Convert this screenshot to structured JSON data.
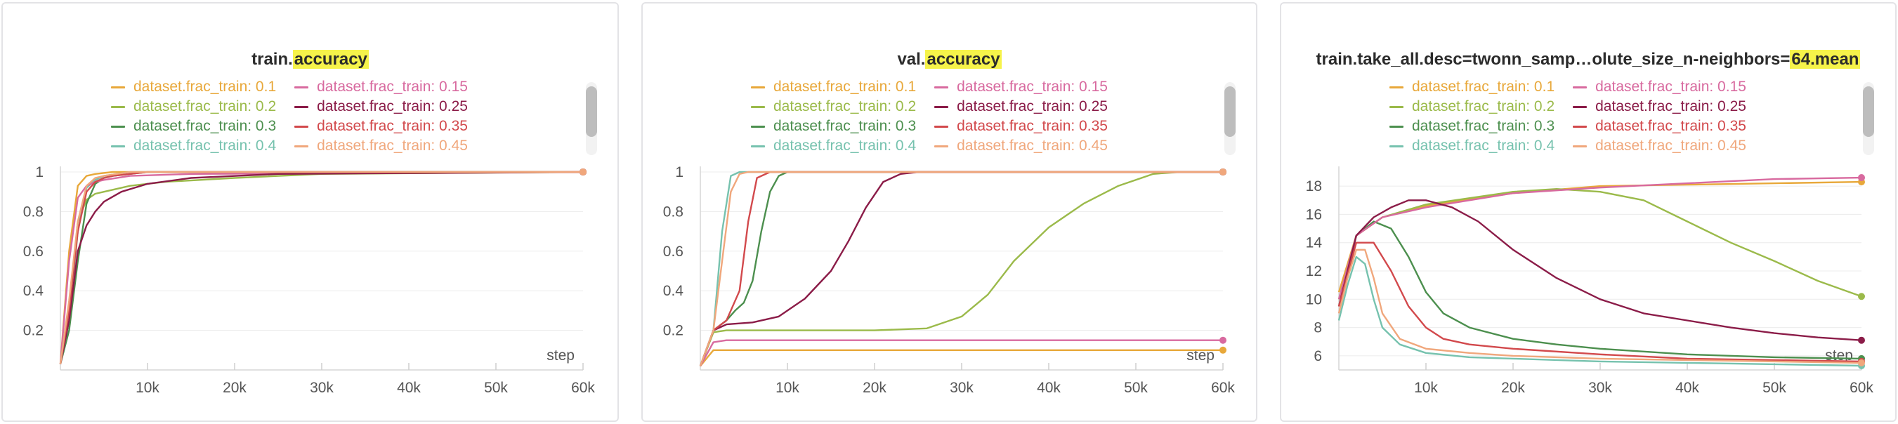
{
  "chart_data": [
    {
      "type": "line",
      "title_prefix": "train.",
      "title_highlight": "accuracy",
      "title_suffix": "",
      "xlabel": "step",
      "xlim": [
        0,
        60000
      ],
      "ylim": [
        0,
        1
      ],
      "xticks": [
        {
          "v": 10000,
          "label": "10k"
        },
        {
          "v": 20000,
          "label": "20k"
        },
        {
          "v": 30000,
          "label": "30k"
        },
        {
          "v": 40000,
          "label": "40k"
        },
        {
          "v": 50000,
          "label": "50k"
        },
        {
          "v": 60000,
          "label": "60k"
        }
      ],
      "yticks": [
        {
          "v": 0.2,
          "label": "0.2"
        },
        {
          "v": 0.4,
          "label": "0.4"
        },
        {
          "v": 0.6,
          "label": "0.6"
        },
        {
          "v": 0.8,
          "label": "0.8"
        },
        {
          "v": 1,
          "label": "1"
        }
      ],
      "series": [
        {
          "name": "dataset.frac_train: 0.1",
          "color": "#e8a83a",
          "x": [
            0,
            1000,
            2000,
            3000,
            4000,
            6000,
            10000,
            60000
          ],
          "y": [
            0.03,
            0.6,
            0.93,
            0.98,
            0.99,
            1,
            1,
            1
          ]
        },
        {
          "name": "dataset.frac_train: 0.2",
          "color": "#9bba4a",
          "x": [
            0,
            1000,
            2000,
            3000,
            4000,
            5000,
            8000,
            12000,
            20000,
            30000,
            60000
          ],
          "y": [
            0.03,
            0.3,
            0.75,
            0.86,
            0.89,
            0.9,
            0.93,
            0.95,
            0.97,
            0.99,
            1
          ]
        },
        {
          "name": "dataset.frac_train: 0.3",
          "color": "#4c8f4e",
          "x": [
            0,
            1000,
            2000,
            3000,
            4000,
            5000,
            6000,
            10000,
            60000
          ],
          "y": [
            0.03,
            0.2,
            0.55,
            0.84,
            0.94,
            0.97,
            0.98,
            1,
            1
          ]
        },
        {
          "name": "dataset.frac_train: 0.4",
          "color": "#76c2ae",
          "x": [
            0,
            1000,
            2000,
            3000,
            4000,
            5000,
            8000,
            60000
          ],
          "y": [
            0.03,
            0.25,
            0.7,
            0.92,
            0.96,
            0.98,
            1,
            1
          ]
        },
        {
          "name": "dataset.frac_train: 0.15",
          "color": "#d86a9f",
          "x": [
            0,
            1000,
            2000,
            3000,
            4000,
            5000,
            8000,
            15000,
            60000
          ],
          "y": [
            0.03,
            0.55,
            0.87,
            0.93,
            0.95,
            0.96,
            0.98,
            0.99,
            1
          ]
        },
        {
          "name": "dataset.frac_train: 0.25",
          "color": "#8b1c48",
          "x": [
            0,
            1000,
            2000,
            3000,
            4000,
            5000,
            7000,
            10000,
            15000,
            25000,
            60000
          ],
          "y": [
            0.03,
            0.25,
            0.6,
            0.73,
            0.8,
            0.85,
            0.9,
            0.94,
            0.97,
            0.99,
            1
          ]
        },
        {
          "name": "dataset.frac_train: 0.35",
          "color": "#d2494c",
          "x": [
            0,
            1000,
            2000,
            3000,
            4000,
            5000,
            6000,
            10000,
            60000
          ],
          "y": [
            0.03,
            0.3,
            0.7,
            0.9,
            0.95,
            0.97,
            0.98,
            1,
            1
          ]
        },
        {
          "name": "dataset.frac_train: 0.45",
          "color": "#f0a77c",
          "x": [
            0,
            1000,
            2000,
            3000,
            4000,
            5000,
            8000,
            60000
          ],
          "y": [
            0.03,
            0.35,
            0.75,
            0.93,
            0.97,
            0.98,
            1,
            1
          ]
        }
      ]
    },
    {
      "type": "line",
      "title_prefix": "val.",
      "title_highlight": "accuracy",
      "title_suffix": "",
      "xlabel": "step",
      "xlim": [
        0,
        60000
      ],
      "ylim": [
        0,
        1
      ],
      "xticks": [
        {
          "v": 10000,
          "label": "10k"
        },
        {
          "v": 20000,
          "label": "20k"
        },
        {
          "v": 30000,
          "label": "30k"
        },
        {
          "v": 40000,
          "label": "40k"
        },
        {
          "v": 50000,
          "label": "50k"
        },
        {
          "v": 60000,
          "label": "60k"
        }
      ],
      "yticks": [
        {
          "v": 0.2,
          "label": "0.2"
        },
        {
          "v": 0.4,
          "label": "0.4"
        },
        {
          "v": 0.6,
          "label": "0.6"
        },
        {
          "v": 0.8,
          "label": "0.8"
        },
        {
          "v": 1,
          "label": "1"
        }
      ],
      "series": [
        {
          "name": "dataset.frac_train: 0.1",
          "color": "#e8a83a",
          "x": [
            0,
            1500,
            3000,
            60000
          ],
          "y": [
            0.02,
            0.1,
            0.1,
            0.1
          ]
        },
        {
          "name": "dataset.frac_train: 0.2",
          "color": "#9bba4a",
          "x": [
            0,
            1500,
            3000,
            8000,
            20000,
            26000,
            30000,
            33000,
            36000,
            40000,
            44000,
            48000,
            52000,
            55000,
            60000
          ],
          "y": [
            0.02,
            0.19,
            0.2,
            0.2,
            0.2,
            0.21,
            0.27,
            0.38,
            0.55,
            0.72,
            0.84,
            0.93,
            0.99,
            1,
            1
          ]
        },
        {
          "name": "dataset.frac_train: 0.3",
          "color": "#4c8f4e",
          "x": [
            0,
            1500,
            3000,
            4000,
            5000,
            6000,
            7000,
            8000,
            9000,
            10000,
            60000
          ],
          "y": [
            0.02,
            0.2,
            0.25,
            0.3,
            0.34,
            0.45,
            0.7,
            0.9,
            0.98,
            1,
            1
          ]
        },
        {
          "name": "dataset.frac_train: 0.4",
          "color": "#76c2ae",
          "x": [
            0,
            1500,
            2500,
            3500,
            4500,
            60000
          ],
          "y": [
            0.02,
            0.2,
            0.7,
            0.98,
            1,
            1
          ]
        },
        {
          "name": "dataset.frac_train: 0.15",
          "color": "#d86a9f",
          "x": [
            0,
            1500,
            3000,
            60000
          ],
          "y": [
            0.02,
            0.14,
            0.15,
            0.15
          ]
        },
        {
          "name": "dataset.frac_train: 0.25",
          "color": "#8b1c48",
          "x": [
            0,
            1500,
            3000,
            6000,
            9000,
            12000,
            15000,
            17000,
            19000,
            21000,
            23000,
            25000,
            60000
          ],
          "y": [
            0.02,
            0.2,
            0.23,
            0.24,
            0.27,
            0.36,
            0.5,
            0.65,
            0.82,
            0.95,
            0.99,
            1,
            1
          ]
        },
        {
          "name": "dataset.frac_train: 0.35",
          "color": "#d2494c",
          "x": [
            0,
            1500,
            3000,
            4500,
            5500,
            6500,
            8000,
            60000
          ],
          "y": [
            0.02,
            0.2,
            0.25,
            0.4,
            0.75,
            0.97,
            1,
            1
          ]
        },
        {
          "name": "dataset.frac_train: 0.45",
          "color": "#f0a77c",
          "x": [
            0,
            1500,
            2500,
            3500,
            4500,
            5500,
            60000
          ],
          "y": [
            0.02,
            0.2,
            0.55,
            0.9,
            0.99,
            1,
            1
          ]
        }
      ]
    },
    {
      "type": "line",
      "title_prefix": "train.take_all.desc=twonn_samp…olute_size_n-neighbors=",
      "title_highlight": "64.mean",
      "title_suffix": "",
      "xlabel": "step",
      "xlim": [
        0,
        60000
      ],
      "ylim": [
        5,
        19
      ],
      "xticks": [
        {
          "v": 10000,
          "label": "10k"
        },
        {
          "v": 20000,
          "label": "20k"
        },
        {
          "v": 30000,
          "label": "30k"
        },
        {
          "v": 40000,
          "label": "40k"
        },
        {
          "v": 50000,
          "label": "50k"
        },
        {
          "v": 60000,
          "label": "60k"
        }
      ],
      "yticks": [
        {
          "v": 6,
          "label": "6"
        },
        {
          "v": 8,
          "label": "8"
        },
        {
          "v": 10,
          "label": "10"
        },
        {
          "v": 12,
          "label": "12"
        },
        {
          "v": 14,
          "label": "14"
        },
        {
          "v": 16,
          "label": "16"
        },
        {
          "v": 18,
          "label": "18"
        }
      ],
      "series": [
        {
          "name": "dataset.frac_train: 0.1",
          "color": "#e8a83a",
          "x": [
            0,
            2000,
            5000,
            10000,
            20000,
            30000,
            40000,
            50000,
            60000
          ],
          "y": [
            10.5,
            14.5,
            15.8,
            16.6,
            17.5,
            18,
            18.1,
            18.2,
            18.3
          ]
        },
        {
          "name": "dataset.frac_train: 0.2",
          "color": "#9bba4a",
          "x": [
            0,
            2000,
            5000,
            10000,
            20000,
            25000,
            30000,
            35000,
            40000,
            45000,
            50000,
            55000,
            60000
          ],
          "y": [
            10,
            14.5,
            15.8,
            16.7,
            17.6,
            17.8,
            17.6,
            17,
            15.5,
            14,
            12.7,
            11.3,
            10.2
          ]
        },
        {
          "name": "dataset.frac_train: 0.3",
          "color": "#4c8f4e",
          "x": [
            0,
            2000,
            4000,
            6000,
            8000,
            10000,
            12000,
            15000,
            20000,
            25000,
            30000,
            40000,
            50000,
            60000
          ],
          "y": [
            9.5,
            14.5,
            15.5,
            15,
            13,
            10.5,
            9,
            8,
            7.2,
            6.8,
            6.5,
            6.1,
            5.9,
            5.8
          ]
        },
        {
          "name": "dataset.frac_train: 0.4",
          "color": "#76c2ae",
          "x": [
            0,
            1000,
            2000,
            3000,
            4000,
            5000,
            7000,
            10000,
            15000,
            20000,
            30000,
            40000,
            50000,
            60000
          ],
          "y": [
            8.5,
            11,
            13,
            12.5,
            10,
            8,
            6.8,
            6.2,
            5.9,
            5.8,
            5.6,
            5.5,
            5.4,
            5.3
          ]
        },
        {
          "name": "dataset.frac_train: 0.15",
          "color": "#d86a9f",
          "x": [
            0,
            2000,
            5000,
            10000,
            20000,
            30000,
            40000,
            50000,
            60000
          ],
          "y": [
            10,
            14.5,
            15.8,
            16.5,
            17.5,
            17.9,
            18.2,
            18.5,
            18.6
          ]
        },
        {
          "name": "dataset.frac_train: 0.25",
          "color": "#8b1c48",
          "x": [
            0,
            2000,
            4000,
            6000,
            8000,
            10000,
            13000,
            16000,
            20000,
            25000,
            30000,
            35000,
            40000,
            45000,
            50000,
            55000,
            60000
          ],
          "y": [
            9.5,
            14.5,
            15.8,
            16.5,
            17,
            17,
            16.5,
            15.5,
            13.5,
            11.5,
            10,
            9,
            8.5,
            8,
            7.6,
            7.3,
            7.1
          ]
        },
        {
          "name": "dataset.frac_train: 0.35",
          "color": "#d2494c",
          "x": [
            0,
            2000,
            4000,
            6000,
            8000,
            10000,
            12000,
            15000,
            20000,
            30000,
            40000,
            50000,
            60000
          ],
          "y": [
            9.5,
            14,
            14,
            12,
            9.5,
            8,
            7.2,
            6.8,
            6.5,
            6.1,
            5.8,
            5.7,
            5.6
          ]
        },
        {
          "name": "dataset.frac_train: 0.45",
          "color": "#f0a77c",
          "x": [
            0,
            1000,
            2000,
            3000,
            4000,
            5000,
            7000,
            10000,
            15000,
            20000,
            30000,
            40000,
            50000,
            60000
          ],
          "y": [
            9,
            11.5,
            13.5,
            13.5,
            11.5,
            9,
            7.2,
            6.5,
            6.2,
            6,
            5.8,
            5.7,
            5.6,
            5.5
          ]
        }
      ]
    }
  ]
}
